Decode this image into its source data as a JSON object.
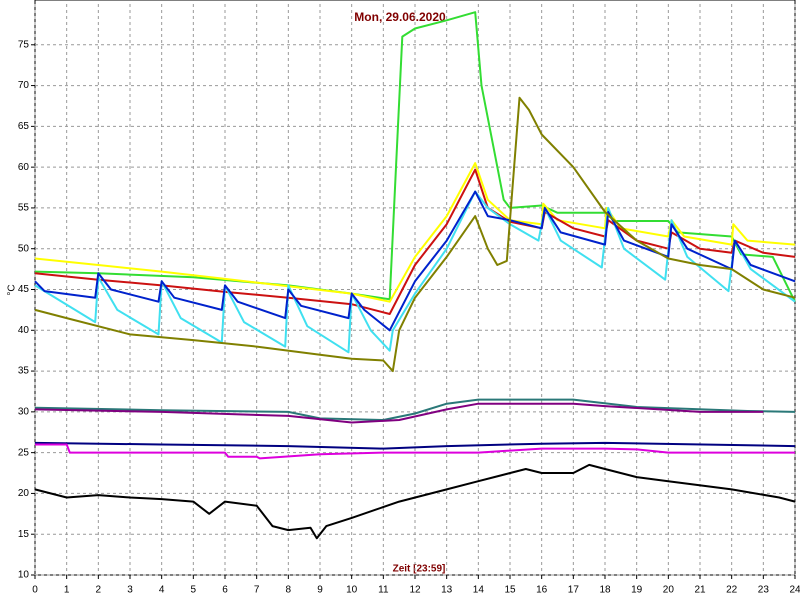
{
  "chart_data": {
    "type": "line",
    "title": "Mon, 29.06.2020",
    "x_label": "Zeit [23:59]",
    "y_label": "°C",
    "xlim": [
      0,
      24
    ],
    "xticks": [
      0,
      1,
      2,
      3,
      4,
      5,
      6,
      7,
      8,
      9,
      10,
      11,
      12,
      13,
      14,
      15,
      16,
      17,
      18,
      19,
      20,
      21,
      22,
      23,
      24
    ],
    "ylim": [
      10,
      80
    ],
    "yticks": [
      10,
      15,
      20,
      25,
      30,
      35,
      40,
      45,
      50,
      55,
      60,
      65,
      70,
      75
    ],
    "grid": true,
    "series": [
      {
        "color": "#33dd33",
        "x": [
          0,
          2,
          5,
          8,
          10,
          11.2,
          11.4,
          11.6,
          12,
          13,
          13.9,
          14.1,
          14.5,
          14.8,
          15,
          16,
          16.5,
          18,
          18.3,
          20,
          20.3,
          22,
          22.3,
          23.3,
          24
        ],
        "values": [
          47.2,
          47,
          46.5,
          45.5,
          44.5,
          43.8,
          60,
          76,
          77,
          78,
          79,
          70,
          62,
          56,
          55,
          55.3,
          54.4,
          54.4,
          53.4,
          53.4,
          52,
          51.5,
          49.3,
          49,
          43.5
        ]
      },
      {
        "color": "#ffff00",
        "x": [
          0,
          2,
          4,
          6,
          8,
          10,
          11.2,
          12,
          13,
          13.9,
          14.3,
          15,
          16,
          16.05,
          16.5,
          18,
          18.05,
          18.5,
          20,
          20.1,
          20.5,
          22,
          22.05,
          22.5,
          24
        ],
        "values": [
          48.8,
          48,
          47.2,
          46.3,
          45.4,
          44.5,
          43.5,
          49,
          54,
          60.5,
          56,
          53.5,
          53,
          55.5,
          53.5,
          52.5,
          55,
          52.5,
          51.5,
          53.5,
          51.5,
          50.5,
          53,
          51,
          50.5
        ]
      },
      {
        "color": "#cc1111",
        "x": [
          0,
          2,
          4,
          6,
          8,
          10,
          11.2,
          12,
          13,
          13.9,
          14.3,
          15,
          16,
          16.1,
          17,
          18,
          18.1,
          19,
          20,
          20.1,
          21,
          22,
          22.1,
          23,
          24
        ],
        "values": [
          47,
          46.2,
          45.5,
          44.7,
          44,
          43.2,
          42,
          48,
          53,
          59.7,
          55,
          53.3,
          52.5,
          54.5,
          52.5,
          51.5,
          53.5,
          51,
          50,
          52,
          50,
          49.5,
          51,
          49.5,
          49
        ]
      },
      {
        "color": "#40e0f0",
        "x": [
          0,
          1.9,
          2.0,
          2.6,
          3.9,
          4.0,
          4.6,
          5.9,
          6.0,
          6.6,
          7.9,
          8.0,
          8.6,
          9.9,
          10.0,
          10.6,
          11.2,
          11.3,
          12,
          13,
          13.9,
          14.3,
          15,
          15.9,
          16.1,
          16.6,
          17.9,
          18.1,
          18.6,
          19.9,
          20.1,
          20.6,
          21.9,
          22.1,
          22.6,
          24
        ],
        "values": [
          45.5,
          41,
          46.5,
          42.5,
          39.5,
          46,
          41.5,
          38.5,
          45.5,
          41,
          38,
          45.5,
          40.5,
          37.3,
          44.5,
          40,
          37.5,
          40,
          44.5,
          50,
          57,
          55,
          53,
          51,
          55,
          51,
          47.7,
          55,
          50,
          46.2,
          53.5,
          49,
          44.8,
          51,
          47.5,
          43.5
        ]
      },
      {
        "color": "#0022cc",
        "x": [
          0,
          0.3,
          1.9,
          2.0,
          2.4,
          3.9,
          4.0,
          4.4,
          5.9,
          6.0,
          6.4,
          7.9,
          8.0,
          8.4,
          9.9,
          10.0,
          10.4,
          11.2,
          12,
          13,
          13.9,
          14.3,
          15,
          16,
          16.1,
          16.6,
          18,
          18.1,
          18.6,
          20,
          20.1,
          20.6,
          22,
          22.1,
          22.6,
          24
        ],
        "values": [
          46,
          44.8,
          44,
          47,
          45,
          43.5,
          46,
          44,
          42.5,
          45.5,
          43.5,
          41.5,
          45,
          43,
          41.5,
          44.5,
          42.5,
          40,
          46,
          51,
          57,
          54,
          53.5,
          52.5,
          55,
          52,
          50.5,
          54.5,
          51,
          49,
          53,
          50,
          47.5,
          51,
          48,
          46
        ]
      },
      {
        "color": "#808000",
        "x": [
          0,
          1,
          3,
          5,
          7,
          9,
          10,
          11,
          11.3,
          11.5,
          12,
          13,
          13.9,
          14.3,
          14.6,
          14.9,
          15.3,
          15.6,
          16,
          17,
          18,
          19,
          20,
          21,
          22,
          23,
          24
        ],
        "values": [
          42.5,
          41.5,
          39.5,
          38.8,
          38,
          37,
          36.5,
          36.3,
          35,
          40,
          44,
          49,
          54,
          50,
          48,
          48.5,
          68.5,
          67,
          64,
          60,
          54.5,
          51,
          48.8,
          48,
          47.5,
          45,
          44
        ]
      },
      {
        "color": "#2a7878",
        "x": [
          0,
          4,
          8,
          9,
          11,
          12,
          13,
          14,
          17,
          19,
          22.5,
          24
        ],
        "values": [
          30.5,
          30.2,
          30,
          29.2,
          29,
          29.8,
          31,
          31.5,
          31.5,
          30.6,
          30.1,
          30
        ]
      },
      {
        "color": "#800080",
        "x": [
          0,
          4,
          8,
          10,
          11.5,
          13,
          14,
          17,
          18,
          21,
          23
        ],
        "values": [
          30.3,
          30,
          29.5,
          28.7,
          29,
          30.3,
          31,
          31,
          30.7,
          30,
          30
        ]
      },
      {
        "color": "#000080",
        "x": [
          0,
          4,
          8,
          11,
          13,
          16,
          18,
          24
        ],
        "values": [
          26.2,
          26,
          25.8,
          25.5,
          25.8,
          26.1,
          26.2,
          25.8
        ]
      },
      {
        "color": "#dd00dd",
        "x": [
          0,
          1,
          1.1,
          6,
          6.1,
          7,
          7.1,
          9,
          11,
          14,
          16,
          18,
          19,
          20,
          24
        ],
        "values": [
          26,
          26,
          25,
          25,
          24.5,
          24.5,
          24.3,
          24.8,
          25,
          25,
          25.5,
          25.5,
          25.4,
          25,
          25
        ]
      },
      {
        "color": "#000000",
        "x": [
          0,
          1,
          2,
          3,
          4,
          5,
          5.5,
          6,
          7,
          7.5,
          8,
          8.7,
          8.9,
          9.2,
          10,
          11.5,
          13,
          14,
          14.5,
          15.5,
          16,
          17,
          17.5,
          18,
          19,
          20,
          22,
          23.5,
          24
        ],
        "values": [
          20.5,
          19.5,
          19.8,
          19.5,
          19.3,
          19,
          17.5,
          19,
          18.5,
          16,
          15.5,
          15.8,
          14.5,
          16,
          17,
          19,
          20.5,
          21.5,
          22,
          23,
          22.5,
          22.5,
          23.5,
          23,
          22,
          21.5,
          20.5,
          19.5,
          19
        ]
      }
    ]
  }
}
